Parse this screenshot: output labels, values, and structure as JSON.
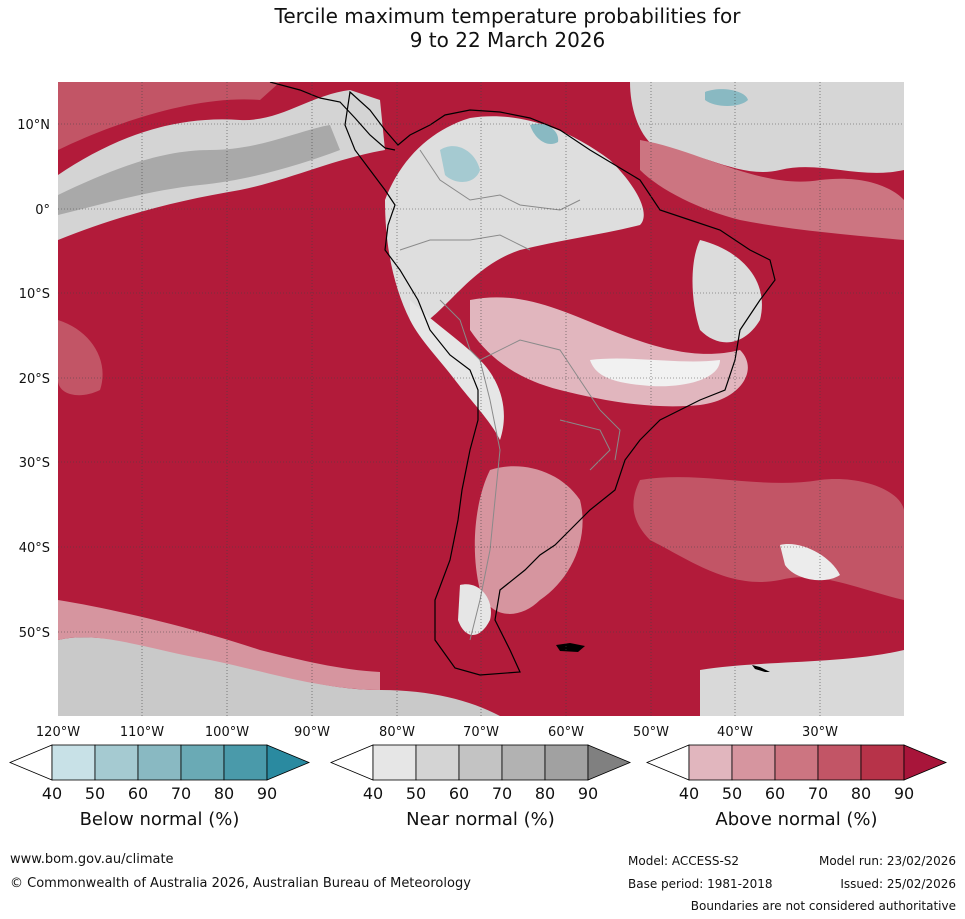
{
  "title": {
    "line1": "Tercile maximum temperature probabilities for",
    "line2": "9 to 22 March 2026"
  },
  "map": {
    "lat_labels": [
      "10°N",
      "0°",
      "10°S",
      "20°S",
      "30°S",
      "40°S",
      "50°S"
    ],
    "lon_labels": [
      "120°W",
      "110°W",
      "100°W",
      "90°W",
      "80°W",
      "70°W",
      "60°W",
      "50°W",
      "40°W",
      "30°W"
    ]
  },
  "colorbars": [
    {
      "title": "Below normal (%)",
      "ticks": [
        "40",
        "50",
        "60",
        "70",
        "80",
        "90"
      ],
      "colors": [
        "#ffffff",
        "#c8e1e7",
        "#a5cad1",
        "#89b9c2",
        "#6aaab5",
        "#4a9aaa",
        "#2a8aa0"
      ]
    },
    {
      "title": "Near normal (%)",
      "ticks": [
        "40",
        "50",
        "60",
        "70",
        "80",
        "90"
      ],
      "colors": [
        "#ffffff",
        "#e6e6e6",
        "#d4d4d4",
        "#c3c3c3",
        "#b2b2b2",
        "#a1a1a1",
        "#808080"
      ]
    },
    {
      "title": "Above normal (%)",
      "ticks": [
        "40",
        "50",
        "60",
        "70",
        "80",
        "90"
      ],
      "colors": [
        "#ffffff",
        "#e1b6be",
        "#d6959f",
        "#cc7581",
        "#c25566",
        "#b73349",
        "#a8153a"
      ]
    }
  ],
  "footer": {
    "website": "www.bom.gov.au/climate",
    "copyright": "© Commonwealth of Australia 2026, Australian Bureau of Meteorology",
    "model": "Model: ACCESS-S2",
    "model_run": "Model run: 23/02/2026",
    "base_period": "Base period: 1981-2018",
    "issued": "Issued: 25/02/2026",
    "disclaimer": "Boundaries are not considered authoritative"
  }
}
